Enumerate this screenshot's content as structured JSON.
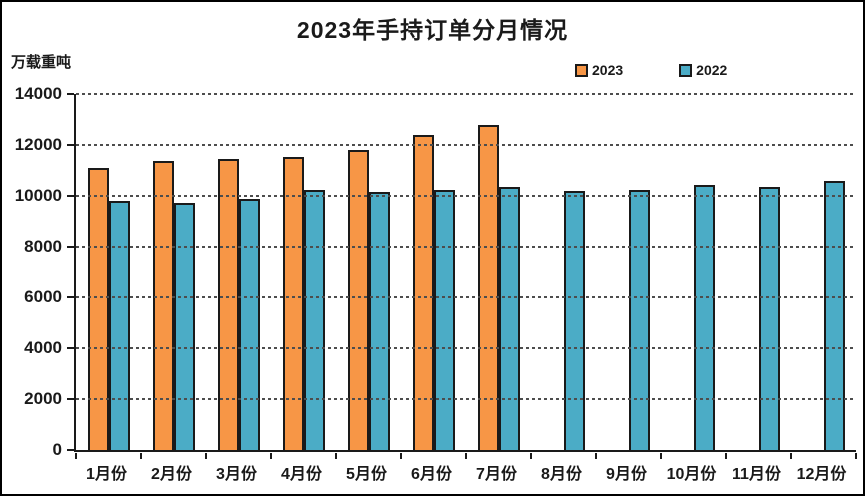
{
  "title": "2023年手持订单分月情况",
  "unit_label": "万载重吨",
  "legend": {
    "items": [
      {
        "label": "2023",
        "color": "#F79646"
      },
      {
        "label": "2022",
        "color": "#4BACC6"
      }
    ]
  },
  "colors": {
    "bar_2023": "#F79646",
    "bar_2022": "#4BACC6",
    "bar_border": "#1a1a1a",
    "gridline": "#4d4d4d",
    "axis": "#1a1a1a",
    "text": "#1a1a1a",
    "background": "#ffffff"
  },
  "chart_data": {
    "type": "bar",
    "title": "2023年手持订单分月情况",
    "ylabel": "万载重吨",
    "xlabel": "",
    "categories": [
      "1月份",
      "2月份",
      "3月份",
      "4月份",
      "5月份",
      "6月份",
      "7月份",
      "8月份",
      "9月份",
      "10月份",
      "11月份",
      "12月份"
    ],
    "series": [
      {
        "name": "2023",
        "color": "#F79646",
        "values": [
          11110,
          11370,
          11450,
          11520,
          11780,
          12380,
          12780,
          null,
          null,
          null,
          null,
          null
        ]
      },
      {
        "name": "2022",
        "color": "#4BACC6",
        "values": [
          9780,
          9720,
          9880,
          10220,
          10130,
          10230,
          10330,
          10200,
          10240,
          10440,
          10350,
          10560
        ]
      }
    ],
    "ylim": [
      0,
      14000
    ],
    "ytick_step": 2000,
    "ytick_labels": [
      "0",
      "2000",
      "4000",
      "6000",
      "8000",
      "10000",
      "12000",
      "14000"
    ],
    "grid": "horizontal-dashed",
    "legend_position": "top-right"
  }
}
